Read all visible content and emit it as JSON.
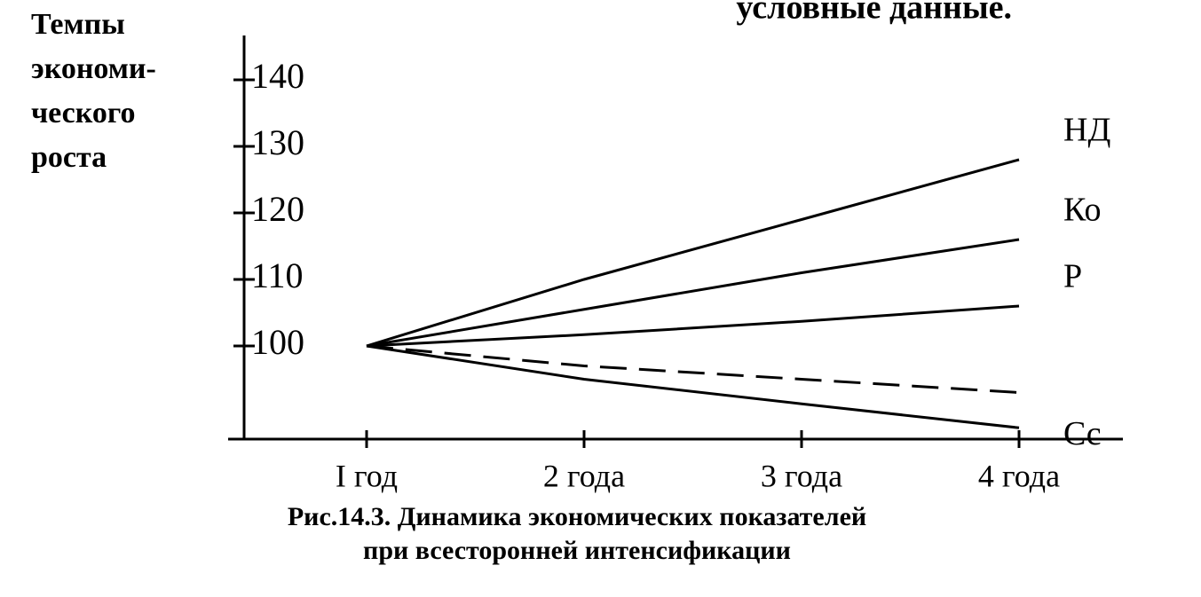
{
  "header_fragment": "условные данные.",
  "chart_data": {
    "type": "line",
    "y_label_lines": [
      "Темпы",
      "экономи-",
      "ческого",
      "роста"
    ],
    "categories": [
      "I год",
      "2 года",
      "3 года",
      "4 года"
    ],
    "series": [
      {
        "name": "НД",
        "color": "#000000",
        "values": [
          100,
          110,
          119,
          128
        ]
      },
      {
        "name": "Ко",
        "color": "#000000",
        "values": [
          100,
          105.5,
          111,
          116
        ]
      },
      {
        "name": "Р",
        "color": "#000000",
        "values": [
          100,
          101.7,
          103.7,
          106
        ]
      },
      {
        "color": "#000000",
        "dashed": true,
        "values": [
          100,
          97,
          95,
          93
        ]
      },
      {
        "name": "Сс",
        "color": "#000000",
        "values": [
          100,
          95,
          91.3,
          87.7
        ]
      }
    ],
    "ylim": [
      86,
      146
    ],
    "yticks": [
      100,
      110,
      120,
      130,
      140
    ],
    "caption_lines": [
      "Рис.14.3. Динамика экономических показателей",
      "при всесторонней интенсификации"
    ]
  }
}
